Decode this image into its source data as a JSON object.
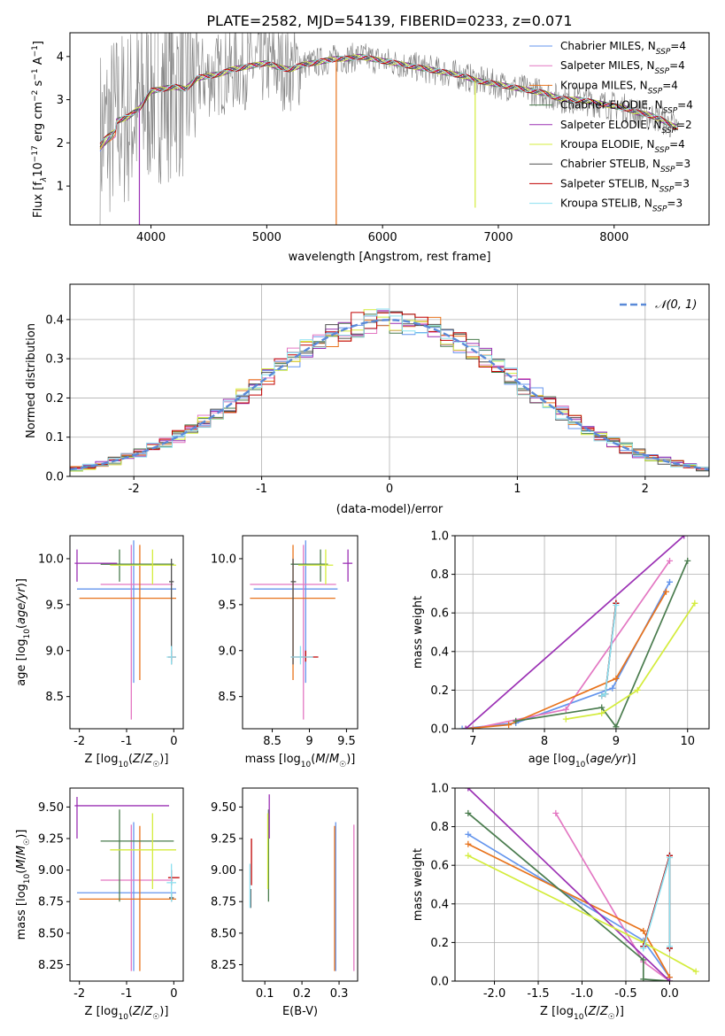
{
  "title": "PLATE=2582, MJD=54139, FIBERID=0233, z=0.071",
  "models": [
    {
      "label": "Chabrier MILES, N",
      "sub": "SSP",
      "n": "=4",
      "color": "#6495ed"
    },
    {
      "label": "Salpeter MILES, N",
      "sub": "SSP",
      "n": "=4",
      "color": "#e377c2"
    },
    {
      "label": "Kroupa MILES, N",
      "sub": "SSP",
      "n": "=4",
      "color": "#e8731c"
    },
    {
      "label": "Chabrier ELODIE, N",
      "sub": "SSP",
      "n": "=4",
      "color": "#4a7c4e"
    },
    {
      "label": "Salpeter ELODIE, N",
      "sub": "SSP",
      "n": "=2",
      "color": "#9b30b4"
    },
    {
      "label": "Kroupa ELODIE, N",
      "sub": "SSP",
      "n": "=4",
      "color": "#d4ec3c"
    },
    {
      "label": "Chabrier STELIB, N",
      "sub": "SSP",
      "n": "=3",
      "color": "#505050"
    },
    {
      "label": "Salpeter STELIB, N",
      "sub": "SSP",
      "n": "=3",
      "color": "#c00000"
    },
    {
      "label": "Kroupa STELIB, N",
      "sub": "SSP",
      "n": "=3",
      "color": "#8ae0f0"
    }
  ],
  "chart_data": [
    {
      "type": "line",
      "id": "spectrum",
      "xlabel": "wavelength [Angstrom, rest frame]",
      "ylabel_parts": {
        "a": "Flux [f",
        "b": "λ",
        "c": "10",
        "d": "−17",
        "e": " erg cm",
        "f": "−2",
        "g": " s",
        "h": "−1",
        "i": " A",
        "j": "−1",
        "k": "]"
      },
      "xlim": [
        3300,
        8820
      ],
      "ylim": [
        0.1,
        4.55
      ],
      "xticks": [
        4000,
        5000,
        6000,
        7000,
        8000
      ],
      "yticks": [
        1,
        2,
        3,
        4
      ],
      "data_color": "#808080",
      "continuum": [
        [
          3560,
          2.1
        ],
        [
          3620,
          2.3
        ],
        [
          3700,
          2.5
        ],
        [
          3800,
          2.6
        ],
        [
          3900,
          2.8
        ],
        [
          4000,
          3.2
        ],
        [
          4100,
          3.25
        ],
        [
          4200,
          3.3
        ],
        [
          4300,
          3.25
        ],
        [
          4400,
          3.5
        ],
        [
          4500,
          3.55
        ],
        [
          4600,
          3.6
        ],
        [
          4700,
          3.7
        ],
        [
          4800,
          3.75
        ],
        [
          4900,
          3.8
        ],
        [
          5000,
          3.85
        ],
        [
          5100,
          3.75
        ],
        [
          5200,
          3.7
        ],
        [
          5300,
          3.8
        ],
        [
          5400,
          3.85
        ],
        [
          5500,
          3.9
        ],
        [
          5600,
          3.95
        ],
        [
          5700,
          3.95
        ],
        [
          5800,
          4.0
        ],
        [
          5900,
          3.95
        ],
        [
          6000,
          3.9
        ],
        [
          6100,
          3.85
        ],
        [
          6200,
          3.8
        ],
        [
          6300,
          3.75
        ],
        [
          6400,
          3.7
        ],
        [
          6500,
          3.65
        ],
        [
          6600,
          3.6
        ],
        [
          6700,
          3.55
        ],
        [
          6800,
          3.45
        ],
        [
          6900,
          3.4
        ],
        [
          7000,
          3.35
        ],
        [
          7100,
          3.3
        ],
        [
          7200,
          3.25
        ],
        [
          7300,
          3.2
        ],
        [
          7400,
          3.15
        ],
        [
          7500,
          3.05
        ],
        [
          7600,
          3.0
        ],
        [
          7700,
          3.0
        ],
        [
          7800,
          2.95
        ],
        [
          7900,
          2.9
        ],
        [
          8000,
          2.85
        ],
        [
          8100,
          2.8
        ],
        [
          8200,
          2.7
        ],
        [
          8300,
          2.65
        ],
        [
          8400,
          2.55
        ],
        [
          8500,
          2.4
        ],
        [
          8560,
          2.35
        ]
      ]
    },
    {
      "type": "step",
      "id": "residuals",
      "xlabel": "(data-model)/error",
      "ylabel": "Normed distribution",
      "xlim": [
        -2.5,
        2.5
      ],
      "ylim": [
        0,
        0.49
      ],
      "xticks": [
        -2,
        -1,
        0,
        1,
        2
      ],
      "yticks": [
        0.0,
        0.1,
        0.2,
        0.3,
        0.4
      ],
      "legend": "𝒩(0, 1)",
      "gaussian_color": "#5a8ad8",
      "bin_width": 0.1
    },
    {
      "type": "scatter",
      "id": "age-vs-Z",
      "xlabel": "Z [log10(Z/Z☉)]",
      "ylabel": "age  [log10(age/yr)]",
      "xlim": [
        -2.2,
        0.2
      ],
      "ylim": [
        8.15,
        10.25
      ],
      "xticks": [
        -2,
        -1,
        0
      ],
      "yticks": [
        8.5,
        9.0,
        9.5,
        10.0
      ],
      "points": [
        {
          "c": 0,
          "x": -0.85,
          "y": 9.67,
          "xlo": -2.05,
          "xhi": 0.05,
          "ylo": 8.65,
          "yhi": 10.2
        },
        {
          "c": 1,
          "x": -0.9,
          "y": 9.72,
          "xlo": -1.55,
          "xhi": -0.02,
          "ylo": 8.25,
          "yhi": 10.15
        },
        {
          "c": 2,
          "x": -0.72,
          "y": 9.57,
          "xlo": -2.0,
          "xhi": 0.05,
          "ylo": 8.68,
          "yhi": 10.15
        },
        {
          "c": 3,
          "x": -1.15,
          "y": 9.94,
          "xlo": -1.55,
          "xhi": 0.0,
          "ylo": 9.75,
          "yhi": 10.1
        },
        {
          "c": 4,
          "x": -2.05,
          "y": 9.95,
          "xlo": -2.1,
          "xhi": -1.2,
          "ylo": 9.75,
          "yhi": 10.1
        },
        {
          "c": 5,
          "x": -0.45,
          "y": 9.93,
          "xlo": -1.35,
          "xhi": 0.05,
          "ylo": 9.72,
          "yhi": 10.1
        },
        {
          "c": 6,
          "x": -0.05,
          "y": 9.75,
          "xlo": -0.1,
          "xhi": 0.0,
          "ylo": 8.85,
          "yhi": 10.0
        },
        {
          "c": 7,
          "x": -0.05,
          "y": 8.93,
          "xlo": -0.12,
          "xhi": 0.05,
          "ylo": 8.88,
          "yhi": 9.0
        },
        {
          "c": 8,
          "x": -0.05,
          "y": 8.93,
          "xlo": -0.15,
          "xhi": 0.05,
          "ylo": 8.85,
          "yhi": 9.05
        }
      ]
    },
    {
      "type": "scatter",
      "id": "age-vs-mass",
      "xlabel": "mass [log10(M/M☉)]",
      "ylabel": "",
      "xlim": [
        8.1,
        9.65
      ],
      "ylim": [
        8.15,
        10.25
      ],
      "xticks": [
        8.5,
        9.0,
        9.5
      ],
      "yticks": [
        8.5,
        9.0,
        9.5,
        10.0
      ],
      "points": [
        {
          "c": 0,
          "x": 8.95,
          "y": 9.67,
          "xlo": 8.25,
          "xhi": 9.38,
          "ylo": 8.65,
          "yhi": 10.2
        },
        {
          "c": 1,
          "x": 8.92,
          "y": 9.72,
          "xlo": 8.2,
          "xhi": 9.36,
          "ylo": 8.25,
          "yhi": 10.15
        },
        {
          "c": 2,
          "x": 8.78,
          "y": 9.57,
          "xlo": 8.2,
          "xhi": 9.35,
          "ylo": 8.68,
          "yhi": 10.15
        },
        {
          "c": 3,
          "x": 9.15,
          "y": 9.94,
          "xlo": 8.75,
          "xhi": 9.25,
          "ylo": 9.75,
          "yhi": 10.1
        },
        {
          "c": 4,
          "x": 9.52,
          "y": 9.95,
          "xlo": 9.45,
          "xhi": 9.58,
          "ylo": 9.75,
          "yhi": 10.1
        },
        {
          "c": 5,
          "x": 9.22,
          "y": 9.93,
          "xlo": 8.85,
          "xhi": 9.32,
          "ylo": 9.72,
          "yhi": 10.1
        },
        {
          "c": 6,
          "x": 8.78,
          "y": 9.75,
          "xlo": 8.75,
          "xhi": 8.82,
          "ylo": 8.85,
          "yhi": 10.0
        },
        {
          "c": 7,
          "x": 8.95,
          "y": 8.93,
          "xlo": 8.75,
          "xhi": 9.12,
          "ylo": 8.88,
          "yhi": 9.0
        },
        {
          "c": 8,
          "x": 8.88,
          "y": 8.93,
          "xlo": 8.75,
          "xhi": 9.05,
          "ylo": 8.85,
          "yhi": 9.05
        }
      ]
    },
    {
      "type": "line",
      "id": "weight-vs-age",
      "xlabel": "age  [log10(age/yr)]",
      "ylabel": "mass weight",
      "xlim": [
        6.75,
        10.3
      ],
      "ylim": [
        0,
        1
      ],
      "xticks": [
        7,
        8,
        9,
        10
      ],
      "yticks": [
        0.0,
        0.2,
        0.4,
        0.6,
        0.8,
        1.0
      ],
      "series": [
        {
          "c": 0,
          "points": [
            [
              6.85,
              0.0
            ],
            [
              7.6,
              0.03
            ],
            [
              8.95,
              0.21
            ],
            [
              9.75,
              0.76
            ]
          ]
        },
        {
          "c": 1,
          "points": [
            [
              7.0,
              0.0
            ],
            [
              8.3,
              0.1
            ],
            [
              9.75,
              0.87
            ]
          ]
        },
        {
          "c": 2,
          "points": [
            [
              6.9,
              0.0
            ],
            [
              7.5,
              0.02
            ],
            [
              9.0,
              0.26
            ],
            [
              9.7,
              0.71
            ]
          ]
        },
        {
          "c": 3,
          "points": [
            [
              7.6,
              0.04
            ],
            [
              8.8,
              0.11
            ],
            [
              9.0,
              0.01
            ],
            [
              10.0,
              0.87
            ]
          ]
        },
        {
          "c": 4,
          "points": [
            [
              6.9,
              0.0
            ],
            [
              9.95,
              1.0
            ]
          ]
        },
        {
          "c": 5,
          "points": [
            [
              8.3,
              0.05
            ],
            [
              8.8,
              0.08
            ],
            [
              9.3,
              0.2
            ],
            [
              10.1,
              0.65
            ]
          ]
        },
        {
          "c": 6,
          "points": [
            [
              8.8,
              0.17
            ],
            [
              8.85,
              0.18
            ],
            [
              9.0,
              0.65
            ]
          ]
        },
        {
          "c": 7,
          "points": [
            [
              8.8,
              0.17
            ],
            [
              8.85,
              0.18
            ],
            [
              9.0,
              0.65
            ]
          ]
        },
        {
          "c": 8,
          "points": [
            [
              8.8,
              0.17
            ],
            [
              8.85,
              0.18
            ],
            [
              9.0,
              0.64
            ]
          ]
        }
      ]
    },
    {
      "type": "scatter",
      "id": "mass-vs-Z",
      "xlabel": "Z [log10(Z/Z☉)]",
      "ylabel": "mass [log10(M/M☉)]",
      "xlim": [
        -2.2,
        0.2
      ],
      "ylim": [
        8.12,
        9.65
      ],
      "xticks": [
        -2,
        -1,
        0
      ],
      "yticks": [
        8.25,
        8.5,
        8.75,
        9.0,
        9.25,
        9.5
      ],
      "points": [
        {
          "c": 0,
          "x": -0.85,
          "y": 8.82,
          "xlo": -2.05,
          "xhi": 0.05,
          "ylo": 8.2,
          "yhi": 9.38
        },
        {
          "c": 1,
          "x": -0.9,
          "y": 8.92,
          "xlo": -1.55,
          "xhi": -0.02,
          "ylo": 8.2,
          "yhi": 9.36
        },
        {
          "c": 2,
          "x": -0.72,
          "y": 8.77,
          "xlo": -2.0,
          "xhi": 0.05,
          "ylo": 8.2,
          "yhi": 9.35
        },
        {
          "c": 3,
          "x": -1.15,
          "y": 9.23,
          "xlo": -1.55,
          "xhi": 0.0,
          "ylo": 8.75,
          "yhi": 9.48
        },
        {
          "c": 4,
          "x": -2.05,
          "y": 9.51,
          "xlo": -2.1,
          "xhi": -0.1,
          "ylo": 9.25,
          "yhi": 9.58
        },
        {
          "c": 5,
          "x": -0.45,
          "y": 9.16,
          "xlo": -1.35,
          "xhi": 0.05,
          "ylo": 8.85,
          "yhi": 9.45
        },
        {
          "c": 6,
          "x": -0.05,
          "y": 8.78,
          "xlo": -0.1,
          "xhi": 0.0,
          "ylo": 8.75,
          "yhi": 8.82
        },
        {
          "c": 7,
          "x": -0.05,
          "y": 8.94,
          "xlo": -0.12,
          "xhi": 0.12,
          "ylo": 8.88,
          "yhi": 9.0
        },
        {
          "c": 8,
          "x": -0.05,
          "y": 8.9,
          "xlo": -0.15,
          "xhi": 0.05,
          "ylo": 8.75,
          "yhi": 9.05
        }
      ]
    },
    {
      "type": "scatter",
      "id": "mass-vs-ebv",
      "xlabel": "E(B-V)",
      "ylabel": "",
      "xlim": [
        0.04,
        0.35
      ],
      "ylim": [
        8.12,
        9.65
      ],
      "xticks": [
        0.1,
        0.2,
        0.3
      ],
      "yticks": [
        8.25,
        8.5,
        8.75,
        9.0,
        9.25,
        9.5
      ],
      "points": [
        {
          "c": 0,
          "x": 0.291,
          "y": 8.82,
          "ylo": 8.2,
          "yhi": 9.38
        },
        {
          "c": 1,
          "x": 0.34,
          "y": 8.92,
          "ylo": 8.2,
          "yhi": 9.36
        },
        {
          "c": 2,
          "x": 0.288,
          "y": 8.77,
          "ylo": 8.2,
          "yhi": 9.35
        },
        {
          "c": 3,
          "x": 0.11,
          "y": 9.23,
          "ylo": 8.75,
          "yhi": 9.48
        },
        {
          "c": 4,
          "x": 0.112,
          "y": 9.51,
          "ylo": 9.25,
          "yhi": 9.6
        },
        {
          "c": 5,
          "x": 0.108,
          "y": 9.16,
          "ylo": 8.85,
          "yhi": 9.45
        },
        {
          "c": 6,
          "x": 0.062,
          "y": 8.78,
          "ylo": 8.7,
          "yhi": 8.85
        },
        {
          "c": 7,
          "x": 0.064,
          "y": 8.94,
          "ylo": 8.88,
          "yhi": 9.25
        },
        {
          "c": 8,
          "x": 0.06,
          "y": 8.9,
          "ylo": 8.7,
          "yhi": 9.05
        }
      ]
    },
    {
      "type": "line",
      "id": "weight-vs-Z",
      "xlabel": "Z [log10(Z/Z☉)]",
      "ylabel": "mass weight",
      "xlim": [
        -2.45,
        0.45
      ],
      "ylim": [
        0,
        1
      ],
      "xticks": [
        -2.0,
        -1.5,
        -1.0,
        -0.5,
        0.0
      ],
      "yticks": [
        0.0,
        0.2,
        0.4,
        0.6,
        0.8,
        1.0
      ],
      "series": [
        {
          "c": 0,
          "points": [
            [
              -2.3,
              0.76
            ],
            [
              -0.3,
              0.21
            ],
            [
              0.0,
              0.02
            ]
          ]
        },
        {
          "c": 1,
          "points": [
            [
              -1.3,
              0.87
            ],
            [
              -0.3,
              0.1
            ],
            [
              0.0,
              0.0
            ]
          ]
        },
        {
          "c": 2,
          "points": [
            [
              -2.3,
              0.71
            ],
            [
              -0.3,
              0.26
            ],
            [
              0.0,
              0.02
            ]
          ]
        },
        {
          "c": 3,
          "points": [
            [
              -2.3,
              0.87
            ],
            [
              -0.3,
              0.11
            ],
            [
              -0.3,
              0.01
            ],
            [
              0.0,
              0.0
            ]
          ]
        },
        {
          "c": 4,
          "points": [
            [
              -2.3,
              1.0
            ],
            [
              0.0,
              0.0
            ]
          ]
        },
        {
          "c": 5,
          "points": [
            [
              -2.3,
              0.65
            ],
            [
              -0.3,
              0.2
            ],
            [
              0.3,
              0.05
            ]
          ]
        },
        {
          "c": 6,
          "points": [
            [
              -0.3,
              0.18
            ],
            [
              0.0,
              0.65
            ],
            [
              0.0,
              0.17
            ]
          ]
        },
        {
          "c": 7,
          "points": [
            [
              -0.3,
              0.18
            ],
            [
              0.0,
              0.65
            ],
            [
              0.0,
              0.17
            ]
          ]
        },
        {
          "c": 8,
          "points": [
            [
              -0.3,
              0.17
            ],
            [
              0.0,
              0.64
            ],
            [
              0.0,
              0.18
            ]
          ]
        }
      ]
    }
  ]
}
